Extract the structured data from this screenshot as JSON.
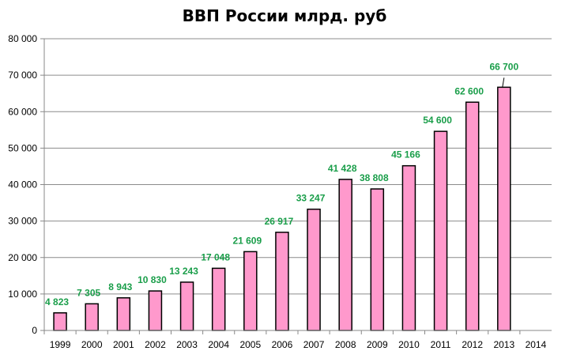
{
  "chart_data": {
    "type": "bar",
    "title": "ВВП России млрд. руб",
    "xlabel": "",
    "ylabel": "",
    "ylim": [
      0,
      80000
    ],
    "yticks": [
      "0",
      "10 000",
      "20 000",
      "30 000",
      "40 000",
      "50 000",
      "60 000",
      "70 000",
      "80 000"
    ],
    "ytick_values": [
      0,
      10000,
      20000,
      30000,
      40000,
      50000,
      60000,
      70000,
      80000
    ],
    "grid": true,
    "legend": "none",
    "categories": [
      "1999",
      "2000",
      "2001",
      "2002",
      "2003",
      "2004",
      "2005",
      "2006",
      "2007",
      "2008",
      "2009",
      "2010",
      "2011",
      "2012",
      "2013",
      "2014"
    ],
    "values": [
      4823,
      7305,
      8943,
      10830,
      13243,
      17048,
      21609,
      26917,
      33247,
      41428,
      38808,
      45166,
      54600,
      62600,
      66700,
      null
    ],
    "data_labels": [
      "4 823",
      "7 305",
      "8 943",
      "10 830",
      "13 243",
      "17 048",
      "21 609",
      "26 917",
      "33 247",
      "41 428",
      "38 808",
      "45 166",
      "54 600",
      "62 600",
      "66 700",
      ""
    ],
    "colors": {
      "bar": "#ff99cc",
      "bar_border": "#000000",
      "label": "#1a9e4a",
      "grid": "#8c8c8c"
    }
  }
}
